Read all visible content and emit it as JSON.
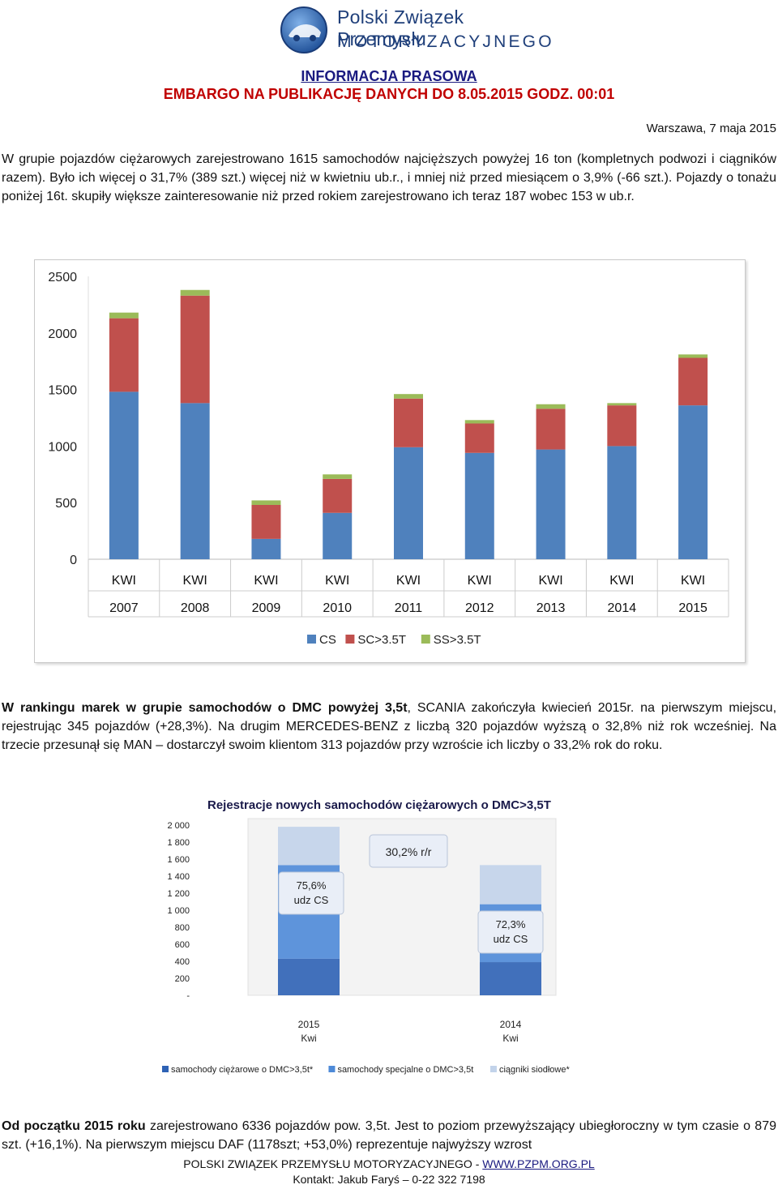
{
  "header": {
    "logo_line1": "Polski Związek Przemysłu",
    "logo_line2": "MOTORYZACYJNEGO",
    "title": "INFORMACJA PRASOWA",
    "embargo": "EMBARGO NA PUBLIKACJĘ DANYCH DO 8.05.2015 GODZ. 00:01",
    "date": "Warszawa, 7 maja 2015"
  },
  "paragraph1": "W grupie pojazdów ciężarowych zarejestrowano 1615 samochodów najcięższych powyżej 16 ton (kompletnych podwozi i ciągników razem). Było ich więcej o 31,7% (389 szt.) więcej niż w kwietniu ub.r., i mniej niż przed miesiącem o 3,9% (-66 szt.). Pojazdy o tonażu poniżej 16t. skupiły większe zainteresowanie niż przed rokiem zarejestrowano ich teraz 187 wobec 153 w ub.r.",
  "paragraph2": {
    "bold": "W rankingu marek w grupie samochodów o DMC powyżej 3,5t",
    "rest": ", SCANIA zakończyła kwiecień 2015r. na pierwszym miejscu, rejestrując 345 pojazdów (+28,3%). Na drugim MERCEDES-BENZ z liczbą 320 pojazdów wyższą o 32,8% niż rok wcześniej. Na trzecie przesunął się MAN – dostarczył swoim klientom 313 pojazdów przy wzroście ich liczby o 33,2% rok do roku."
  },
  "paragraph3": {
    "bold": "Od początku 2015 roku",
    "rest": " zarejestrowano 6336 pojazdów pow. 3,5t. Jest to poziom przewyższający ubiegłoroczny w tym czasie o 879 szt. (+16,1%). Na pierwszym miejscu  DAF (1178szt; +53,0%) reprezentuje najwyższy wzrost"
  },
  "footer": {
    "org": "POLSKI ZWIĄZEK PRZEMYSŁU MOTORYZACYJNEGO - ",
    "link": "WWW.PZPM.ORG.PL",
    "contact": "Kontakt: Jakub Faryś – 0-22 322 7198"
  },
  "chart_data": [
    {
      "type": "bar",
      "stacked": true,
      "categories": [
        "KWI 2007",
        "KWI 2008",
        "KWI 2009",
        "KWI 2010",
        "KWI 2011",
        "KWI 2012",
        "KWI 2013",
        "KWI 2014",
        "KWI 2015"
      ],
      "category_lines": [
        [
          "KWI",
          "2007"
        ],
        [
          "KWI",
          "2008"
        ],
        [
          "KWI",
          "2009"
        ],
        [
          "KWI",
          "2010"
        ],
        [
          "KWI",
          "2011"
        ],
        [
          "KWI",
          "2012"
        ],
        [
          "KWI",
          "2013"
        ],
        [
          "KWI",
          "2014"
        ],
        [
          "KWI",
          "2015"
        ]
      ],
      "series": [
        {
          "name": "CS",
          "color": "#4f81bd",
          "values": [
            1480,
            1380,
            180,
            410,
            990,
            940,
            970,
            1000,
            1360
          ]
        },
        {
          "name": "SC>3.5T",
          "color": "#c0504d",
          "values": [
            650,
            950,
            300,
            300,
            430,
            260,
            360,
            360,
            420
          ]
        },
        {
          "name": "SS>3.5T",
          "color": "#9bbb59",
          "values": [
            50,
            50,
            40,
            40,
            40,
            30,
            40,
            20,
            30
          ]
        }
      ],
      "yticks": [
        "0",
        "500",
        "1000",
        "1500",
        "2000",
        "2500"
      ],
      "ylim": [
        0,
        2500
      ],
      "grid": false,
      "legend": "bottom"
    },
    {
      "type": "bar",
      "stacked": true,
      "title": "Rejestracje nowych samochodów ciężarowych o DMC>3,5T",
      "category_lines": [
        [
          "2015",
          "Kwi"
        ],
        [
          "2014",
          "Kwi"
        ]
      ],
      "series": [
        {
          "name": "samochody ciężarowe o DMC>3,5t*",
          "color": "#2e62b5",
          "values": [
            430,
            390
          ]
        },
        {
          "name": "samochody specjalne o DMC>3,5t",
          "color": "#4e8ad8",
          "values": [
            1100,
            680
          ]
        },
        {
          "name": "ciągniki siodłowe*",
          "color": "#c2d3ea",
          "values": [
            450,
            460
          ]
        }
      ],
      "yticks": [
        "-",
        "200",
        "400",
        "600",
        "800",
        "1 000",
        "1 200",
        "1 400",
        "1 600",
        "1 800",
        "2 000"
      ],
      "ylim": [
        0,
        2000
      ],
      "annotations": [
        {
          "text": "30,2% r/r"
        },
        {
          "lines": [
            "75,6%",
            "udz CS"
          ]
        },
        {
          "lines": [
            "72,3%",
            "udz CS"
          ]
        }
      ],
      "legend": "bottom"
    }
  ]
}
